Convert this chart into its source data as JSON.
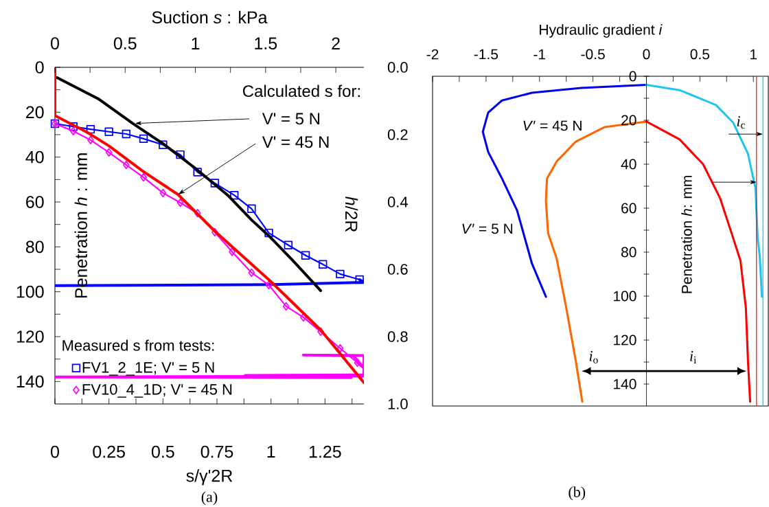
{
  "chart_data": [
    {
      "type": "line",
      "xlabel": "s/γ'2R",
      "x2label": "Suction *s* : kPa",
      "ylabel": "Penetration *h* : mm",
      "y2label": "*h*/2R",
      "xlim": [
        0,
        1.43
      ],
      "xticks": [
        0,
        {
          "value": 0.125,
          "label": null
        },
        0.25,
        {
          "value": 0.375,
          "label": null
        },
        0.5,
        {
          "value": 0.625,
          "label": null
        },
        0.75,
        {
          "value": 0.875,
          "label": null
        },
        1,
        {
          "value": 1.125,
          "label": null
        },
        1.25,
        {
          "value": 1.375,
          "label": null
        }
      ],
      "x2lim": [
        0,
        2.2
      ],
      "x2ticks": [
        0,
        {
          "value": 0.25,
          "label": null
        },
        0.5,
        {
          "value": 0.75,
          "label": null
        },
        1,
        {
          "value": 1.25,
          "label": null
        },
        1.5,
        {
          "value": 1.75,
          "label": null
        },
        2
      ],
      "ylim": [
        150,
        0
      ],
      "yticks": [
        0,
        {
          "value": 10,
          "label": null
        },
        20,
        {
          "value": 30,
          "label": null
        },
        40,
        {
          "value": 50,
          "label": null
        },
        60,
        {
          "value": 70,
          "label": null
        },
        80,
        {
          "value": 90,
          "label": null
        },
        100,
        {
          "value": 110,
          "label": null
        },
        120,
        {
          "value": 130,
          "label": null
        },
        140
      ],
      "y2lim": [
        1,
        0
      ],
      "y2ticks": [
        {
          "value": 0,
          "label": "0.0"
        },
        {
          "value": 0.2,
          "label": "0.2"
        },
        {
          "value": 0.4,
          "label": "0.4"
        },
        {
          "value": 0.6,
          "label": "0.6"
        },
        {
          "value": 0.8,
          "label": "0.8"
        },
        {
          "value": 1,
          "label": "1.0"
        }
      ],
      "legend": "bottom left",
      "legend_title": "Measured s from tests:",
      "annotations": [
        "Calculated s for:",
        {
          "text": "V' = 5 N",
          "x": 0.37,
          "y": 25
        },
        {
          "text": "V' = 45 N",
          "x": 0.57,
          "y": 56.7
        },
        "(a)"
      ],
      "series": [
        {
          "name": "FV1_2_1E; V' = 5 N",
          "color": "#0000ff",
          "marker": "square",
          "x": [
            0,
            0.085,
            0.165,
            0.25,
            0.33,
            0.41,
            0.5,
            0.58,
            0.66,
            0.74,
            0.83,
            0.91,
            0.99,
            1.08,
            1.16,
            1.24,
            1.32,
            1.41
          ],
          "values": [
            25.1,
            26.4,
            27.6,
            28.7,
            29.7,
            31.8,
            34.5,
            38.9,
            46.7,
            51.6,
            57,
            63,
            73.8,
            79.2,
            83.8,
            87.8,
            92.1,
            94.6
          ]
        },
        {
          "color": "#0000ff",
          "x": [
            1.41,
            1.43,
            1.0,
            0
          ],
          "values": [
            94.6,
            95.8,
            96.8,
            97.3
          ]
        },
        {
          "name": "FV10_4_1D; V' = 45 N",
          "color": "#ff00ff",
          "marker": "diamond",
          "x": [
            0,
            0.085,
            0.165,
            0.25,
            0.33,
            0.41,
            0.5,
            0.58,
            0.66,
            0.74,
            0.82,
            0.91,
            0.99,
            1.07,
            1.15,
            1.23,
            1.32,
            1.4
          ],
          "values": [
            25.1,
            28.4,
            32.4,
            37.9,
            43.5,
            49,
            56,
            60.3,
            65,
            73.5,
            82.2,
            91.5,
            97,
            106.5,
            111.4,
            117.8,
            125.2,
            131.6
          ]
        },
        {
          "color": "#ff00ff",
          "x": [
            1.4,
            1.43,
            1.38,
            1.15,
            1.43,
            1.43,
            0.88,
            1.43,
            0,
            1.37
          ],
          "values": [
            131.6,
            134,
            128.5,
            128.2,
            128.4,
            137,
            137.3,
            137.6,
            138,
            138.2
          ]
        },
        {
          "color": "#000000",
          "x": [
            0.01,
            0.2,
            0.36,
            0.5,
            0.65,
            0.8,
            0.91,
            1.0,
            1.1,
            1.23
          ],
          "values": [
            4.6,
            14,
            25,
            34,
            45,
            57,
            68,
            76,
            86,
            99.5
          ]
        },
        {
          "color": "#ff0000",
          "x": [
            0,
            0,
            0.05,
            0.15,
            0.25,
            0.41,
            0.57,
            0.74,
            1.0,
            1.23,
            1.43
          ],
          "values": [
            0,
            21.5,
            24,
            29,
            35,
            46.5,
            56.7,
            73,
            95.5,
            117,
            140.5
          ]
        }
      ]
    },
    {
      "type": "line",
      "xlabel": "Hydraulic gradient *i*",
      "ylabel": "Penetration *h*: mm",
      "xlim": [
        -2,
        1.14
      ],
      "xticks": [
        -2,
        {
          "value": -1.75,
          "label": null
        },
        -1.5,
        {
          "value": -1.25,
          "label": null
        },
        -1,
        {
          "value": -0.75,
          "label": null
        },
        -0.5,
        {
          "value": -0.25,
          "label": null
        },
        0,
        {
          "value": 0.25,
          "label": null
        },
        0.5,
        {
          "value": 0.75,
          "label": null
        },
        1
      ],
      "ylim": [
        150,
        0
      ],
      "yticks": [
        0,
        {
          "value": 10,
          "label": null
        },
        20,
        {
          "value": 30,
          "label": null
        },
        40,
        {
          "value": 50,
          "label": null
        },
        60,
        {
          "value": 70,
          "label": null
        },
        80,
        {
          "value": 90,
          "label": null
        },
        100,
        {
          "value": 110,
          "label": null
        },
        120,
        {
          "value": 130,
          "label": null
        },
        140
      ],
      "ref_lines": [
        {
          "axis": "x",
          "value": 1.03,
          "color": "#ff0000"
        },
        {
          "axis": "x",
          "value": 1.09,
          "color": "#22c4ee"
        }
      ],
      "annotations": [
        "*V*′ = 45 N",
        "*V*′ = 5 N",
        {
          "text": "*i*$_{c}$",
          "x": 1.09,
          "y": 26.3
        },
        "*i*$_{o}$",
        "*i*$_{i}$",
        "(b)"
      ],
      "series": [
        {
          "color": "#0000ee",
          "x": [
            0,
            -0.61,
            -1.07,
            -1.35,
            -1.48,
            -1.53,
            -1.48,
            -1.35,
            -1.21,
            -1.07,
            -0.94
          ],
          "values": [
            3.9,
            5.3,
            7.5,
            11,
            16.5,
            25.3,
            34.4,
            46.6,
            61,
            85.3,
            100.3
          ]
        },
        {
          "color": "#22c4ee",
          "x": [
            0,
            0.31,
            0.65,
            0.81,
            0.95,
            1.02,
            1.04,
            1.06,
            1.08
          ],
          "values": [
            3.9,
            6.3,
            13.1,
            21,
            35.3,
            51,
            73.4,
            81.9,
            100.3
          ]
        },
        {
          "color": "#ff6600",
          "x": [
            0,
            -0.39,
            -0.66,
            -0.84,
            -0.93,
            -0.94,
            -0.92,
            -0.84,
            -0.75,
            -0.66,
            -0.6
          ],
          "values": [
            20.6,
            23.1,
            29.7,
            38.8,
            46.6,
            56.6,
            71.3,
            82.8,
            105.3,
            129.7,
            148
          ]
        },
        {
          "color": "#ff0000",
          "x": [
            0,
            0.31,
            0.53,
            0.69,
            0.81,
            0.88,
            0.93,
            0.95,
            0.97
          ],
          "values": [
            20.6,
            28.7,
            40,
            55.6,
            73.4,
            84,
            105.3,
            129.7,
            148
          ]
        }
      ]
    }
  ]
}
